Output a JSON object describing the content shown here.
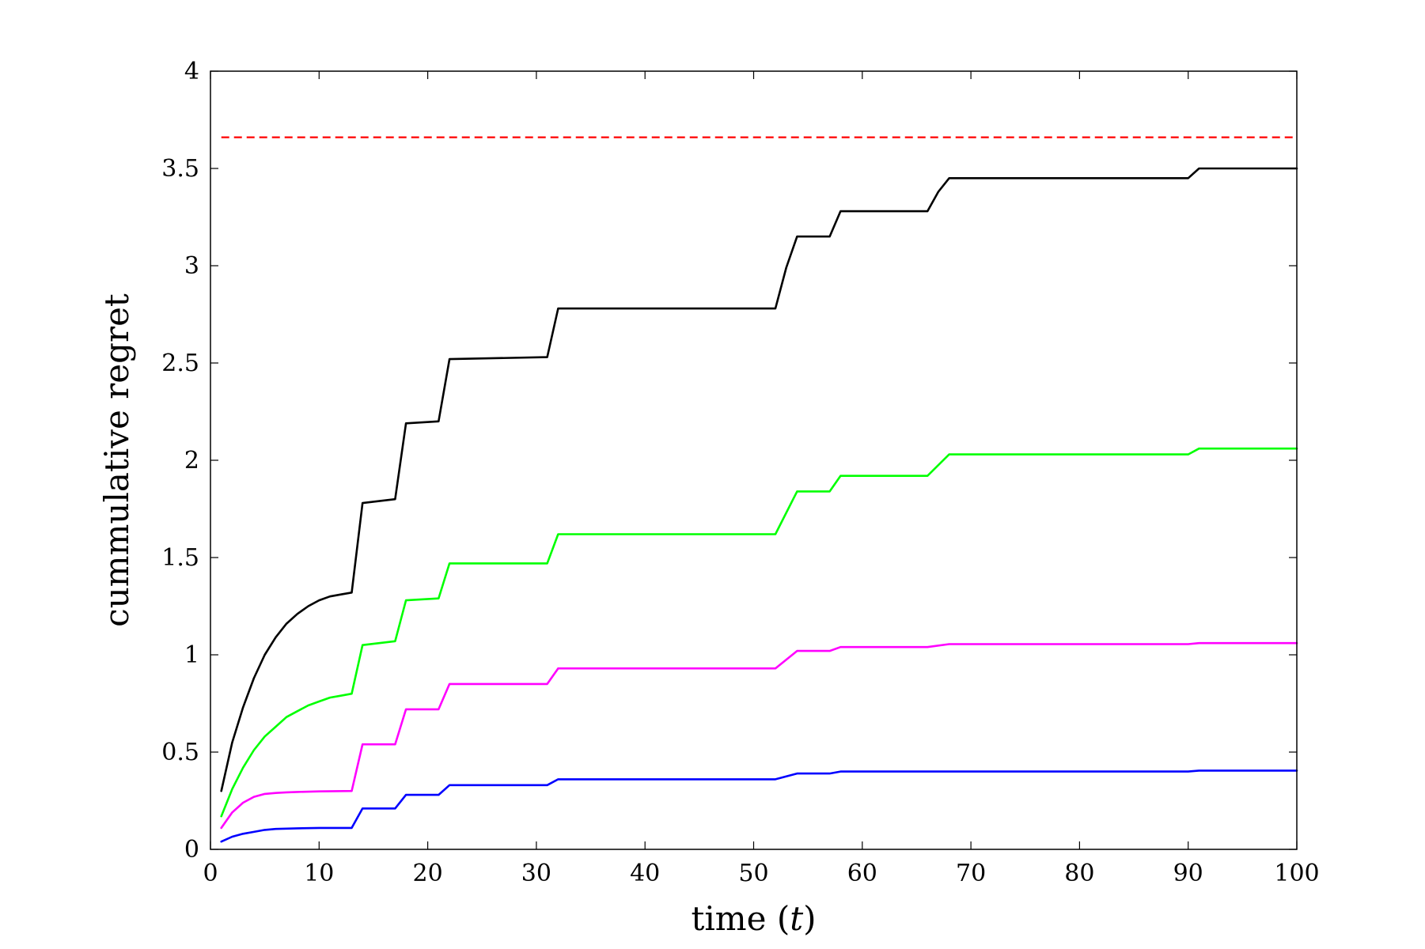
{
  "chart_data": {
    "type": "line",
    "xlabel": "time",
    "xlabel_var": "t",
    "ylabel": "cummulative regret",
    "xlim": [
      0,
      100
    ],
    "ylim": [
      0,
      4
    ],
    "x_ticks": [
      "0",
      "10",
      "20",
      "30",
      "40",
      "50",
      "60",
      "70",
      "80",
      "90",
      "100"
    ],
    "y_ticks": [
      "0",
      "0.5",
      "1",
      "1.5",
      "2",
      "2.5",
      "3",
      "3.5",
      "4"
    ],
    "x_tick_values": [
      0,
      10,
      20,
      30,
      40,
      50,
      60,
      70,
      80,
      90,
      100
    ],
    "y_tick_values": [
      0,
      0.5,
      1,
      1.5,
      2,
      2.5,
      3,
      3.5,
      4
    ],
    "grid": false,
    "legend": "none",
    "reference_line": {
      "y": 3.66,
      "color": "#ff0000",
      "style": "dashed"
    },
    "series": [
      {
        "color": "#000000",
        "x": [
          1,
          2,
          3,
          4,
          5,
          6,
          7,
          8,
          9,
          10,
          11,
          12,
          13,
          14,
          17,
          18,
          21,
          22,
          31,
          32,
          52,
          53,
          54,
          57,
          58,
          66,
          67,
          68,
          90,
          91,
          100
        ],
        "y": [
          0.3,
          0.55,
          0.73,
          0.88,
          1.0,
          1.09,
          1.16,
          1.21,
          1.25,
          1.28,
          1.3,
          1.31,
          1.32,
          1.78,
          1.8,
          2.19,
          2.2,
          2.52,
          2.53,
          2.78,
          2.78,
          2.99,
          3.15,
          3.15,
          3.28,
          3.28,
          3.38,
          3.45,
          3.45,
          3.5,
          3.5
        ]
      },
      {
        "color": "#00ff00",
        "x": [
          1,
          2,
          3,
          4,
          5,
          6,
          7,
          8,
          9,
          10,
          11,
          12,
          13,
          14,
          17,
          18,
          21,
          22,
          31,
          32,
          52,
          54,
          57,
          58,
          66,
          68,
          90,
          91,
          100
        ],
        "y": [
          0.17,
          0.31,
          0.42,
          0.51,
          0.58,
          0.63,
          0.68,
          0.71,
          0.74,
          0.76,
          0.78,
          0.79,
          0.8,
          1.05,
          1.07,
          1.28,
          1.29,
          1.47,
          1.47,
          1.62,
          1.62,
          1.84,
          1.84,
          1.92,
          1.92,
          2.03,
          2.03,
          2.06,
          2.06
        ]
      },
      {
        "color": "#ff00ff",
        "x": [
          1,
          2,
          3,
          4,
          5,
          6,
          7,
          8,
          10,
          13,
          14,
          17,
          18,
          21,
          22,
          31,
          32,
          52,
          54,
          57,
          58,
          66,
          68,
          90,
          91,
          100
        ],
        "y": [
          0.11,
          0.19,
          0.24,
          0.27,
          0.285,
          0.29,
          0.293,
          0.295,
          0.298,
          0.3,
          0.54,
          0.54,
          0.72,
          0.72,
          0.85,
          0.85,
          0.93,
          0.93,
          1.02,
          1.02,
          1.04,
          1.04,
          1.055,
          1.055,
          1.06,
          1.06
        ]
      },
      {
        "color": "#0000ff",
        "x": [
          1,
          2,
          3,
          4,
          5,
          6,
          8,
          10,
          13,
          14,
          17,
          18,
          21,
          22,
          31,
          32,
          52,
          54,
          57,
          58,
          66,
          68,
          90,
          91,
          100
        ],
        "y": [
          0.04,
          0.065,
          0.08,
          0.09,
          0.1,
          0.105,
          0.108,
          0.11,
          0.11,
          0.21,
          0.21,
          0.28,
          0.28,
          0.33,
          0.33,
          0.36,
          0.36,
          0.39,
          0.39,
          0.4,
          0.4,
          0.4,
          0.4,
          0.405,
          0.405
        ]
      }
    ]
  }
}
